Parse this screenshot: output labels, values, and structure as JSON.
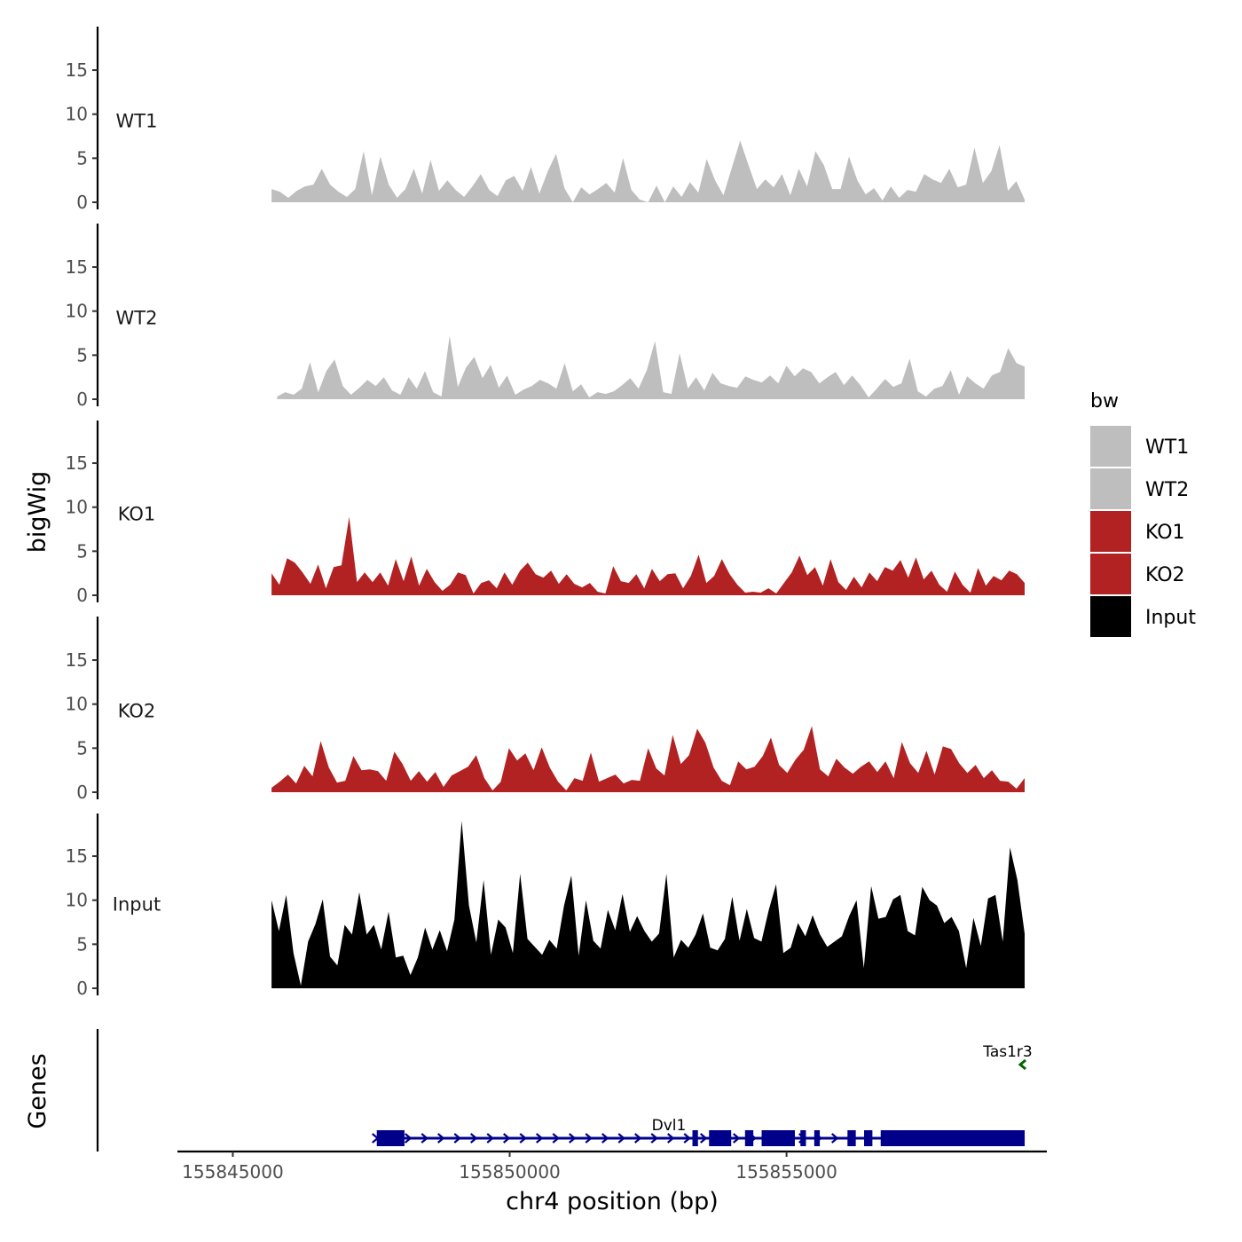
{
  "chart_data": {
    "type": "area",
    "chromosome": "chr4",
    "x_range": [
      155845000,
      155859300
    ],
    "x_ticks": [
      155845000,
      155850000,
      155855000
    ],
    "x_tick_labels": [
      "155845000",
      "155850000",
      "155855000"
    ],
    "xlabel": "chr4 position (bp)",
    "ylabel": "bigWig",
    "ylim": [
      0,
      20
    ],
    "y_ticks": [
      0,
      5,
      10,
      15
    ],
    "y_tick_labels": [
      "0",
      "5",
      "10",
      "15"
    ],
    "tracks_title": "Genes",
    "colors": {
      "WT1": "#bebebe",
      "WT2": "#bebebe",
      "KO1": "#b22222",
      "KO2": "#b22222",
      "Input": "#000000",
      "Dvl1": "#00008b",
      "Tas1r3": "#006400"
    },
    "legend": {
      "title": "bw",
      "placement": "right",
      "entries": [
        "WT1",
        "WT2",
        "KO1",
        "KO2",
        "Input"
      ]
    },
    "series": [
      {
        "name": "WT1",
        "x_start": 155845700,
        "x_end": 155859300,
        "values": [
          1.5,
          1.2,
          0.5,
          1.3,
          1.8,
          2,
          3.8,
          2,
          1.2,
          0.6,
          1.5,
          5.8,
          0.8,
          5.2,
          2,
          0.5,
          1.5,
          3.8,
          1,
          4.8,
          1.3,
          2.5,
          1.4,
          0.6,
          1.8,
          3.2,
          1.4,
          0.7,
          2.5,
          3,
          1.3,
          4,
          1,
          3.5,
          5.5,
          1.6,
          0,
          1.7,
          0.9,
          1.5,
          2.2,
          1.1,
          5,
          1.4,
          0.3,
          0,
          1.9,
          0,
          1.8,
          0.6,
          2.3,
          1.1,
          4.9,
          2.5,
          0.8,
          3.9,
          7,
          4.2,
          1.5,
          2.6,
          1.7,
          3.2,
          0.8,
          3.8,
          1.8,
          5.8,
          4.2,
          1.5,
          1.5,
          5.2,
          2.5,
          0.9,
          1.6,
          0.2,
          1.8,
          0.5,
          1.4,
          1.2,
          3.2,
          2.6,
          2.2,
          3.8,
          1.7,
          2,
          6.2,
          2.2,
          3.5,
          6.5,
          1.3,
          2.4,
          0.3
        ]
      },
      {
        "name": "WT2",
        "x_start": 155845800,
        "x_end": 155859300,
        "values": [
          0.3,
          0.8,
          0.5,
          1.2,
          4.2,
          0.8,
          3.2,
          4.5,
          1.5,
          0.5,
          1.3,
          2.2,
          1.5,
          2.5,
          1,
          0.5,
          2.5,
          1.2,
          3.2,
          0.8,
          0.3,
          7.2,
          1.4,
          3.6,
          4.8,
          2.4,
          3.9,
          1.3,
          2.7,
          0.5,
          1.1,
          1.5,
          2.2,
          1.8,
          1.2,
          4.1,
          0.9,
          1.7,
          0.2,
          0.8,
          0.6,
          0.9,
          1.6,
          2.4,
          1.2,
          3.3,
          6.6,
          0.8,
          0.6,
          5.2,
          1.2,
          2.5,
          1,
          3,
          1.8,
          1.5,
          1.3,
          2.6,
          2.2,
          1.9,
          2.7,
          1.8,
          3.8,
          2.6,
          3.5,
          3.1,
          1.8,
          2.5,
          3.1,
          1.6,
          2.7,
          1.6,
          0.2,
          1.2,
          2.3,
          1.4,
          1.8,
          4.6,
          0.9,
          0.3,
          1.2,
          1.5,
          3.3,
          0.5,
          2.6,
          1.8,
          1.2,
          2.7,
          3.1,
          5.8,
          4.1,
          3.7
        ]
      },
      {
        "name": "KO1",
        "x_start": 155845700,
        "x_end": 155859300,
        "values": [
          2.5,
          1.2,
          4.2,
          3.7,
          2.6,
          1.3,
          3.5,
          0.8,
          3.2,
          3.4,
          8.9,
          1.5,
          2.6,
          1.5,
          2.6,
          1.1,
          4.1,
          1.6,
          4.4,
          1.1,
          3,
          1.5,
          0.5,
          1.2,
          2.6,
          2.3,
          0.2,
          1.4,
          1.7,
          0.8,
          2.6,
          1.2,
          2.8,
          3.7,
          2.4,
          2,
          2.8,
          1.3,
          2.4,
          1.3,
          0.9,
          1.4,
          0.4,
          0.2,
          3.3,
          1.6,
          1.4,
          2.4,
          0.8,
          3,
          1.6,
          2.4,
          2.5,
          0.8,
          2.2,
          4.6,
          1.4,
          2.2,
          4.1,
          2.4,
          1.2,
          0.3,
          0.4,
          0.3,
          0.8,
          0.2,
          1.4,
          2.6,
          4.5,
          2.3,
          3.2,
          1.1,
          4.1,
          1.5,
          0.6,
          2.1,
          0.9,
          2.6,
          1.6,
          3.2,
          2.8,
          4,
          2,
          4.3,
          1.8,
          2.8,
          1.2,
          0.4,
          2.7,
          1.2,
          0.3,
          3.1,
          1.1,
          2.2,
          1.7,
          2.8,
          2.4,
          1.4
        ]
      },
      {
        "name": "KO2",
        "x_start": 155845700,
        "x_end": 155859300,
        "values": [
          0.5,
          1.2,
          2,
          1,
          3,
          1.8,
          5.8,
          2.8,
          1.1,
          1.3,
          4.1,
          2.5,
          2.6,
          2.4,
          1.3,
          4.6,
          3.2,
          1.3,
          2.4,
          1.2,
          2.3,
          0.6,
          1.9,
          2.4,
          2.9,
          4.2,
          1.6,
          0.2,
          1.2,
          5,
          3.6,
          4.4,
          2.5,
          5.1,
          2.8,
          1.2,
          0.2,
          1.6,
          1.3,
          4.5,
          1.2,
          1.6,
          2,
          1,
          1.4,
          1.3,
          5,
          2.7,
          1.9,
          6.5,
          3.2,
          4.2,
          7.2,
          5.6,
          2.8,
          1.3,
          0.8,
          3.5,
          2.6,
          2.9,
          4.1,
          6.2,
          3.1,
          2.2,
          3.7,
          4.8,
          7.5,
          2.6,
          1.8,
          3.8,
          2.8,
          2.1,
          2.9,
          3.5,
          2.3,
          3.5,
          1.6,
          5.7,
          3.3,
          2.2,
          4.7,
          2,
          5.2,
          4.9,
          3.3,
          2.2,
          3.1,
          1.6,
          2.5,
          1.3,
          1.2,
          0.4,
          1.6
        ]
      },
      {
        "name": "Input",
        "x_start": 155845700,
        "x_end": 155859300,
        "values": [
          10,
          6.5,
          10.6,
          4,
          0.3,
          5.3,
          7.3,
          10.1,
          3.6,
          2.6,
          7.2,
          6.1,
          10.9,
          6.1,
          7.2,
          4.4,
          8.7,
          3.5,
          3.7,
          1.5,
          3.5,
          6.9,
          4.4,
          6.6,
          4.2,
          7.8,
          19,
          9.4,
          5.2,
          12.3,
          3.8,
          7.8,
          6.9,
          4,
          13,
          5.6,
          4.7,
          3.8,
          5.5,
          4.5,
          9.4,
          12.8,
          3.7,
          10,
          5.4,
          4.5,
          8.9,
          6.6,
          10.7,
          6.4,
          8.2,
          6.5,
          5.3,
          6.2,
          13,
          3.5,
          5.5,
          4.6,
          6.1,
          8.5,
          4.6,
          4.3,
          5.6,
          10.4,
          5.4,
          9,
          5.7,
          5.3,
          8.9,
          11.8,
          4,
          4.6,
          7.4,
          5.9,
          8.3,
          6.1,
          4.7,
          5.3,
          5.9,
          8.2,
          10,
          2.3,
          11.6,
          7.9,
          8.1,
          10.1,
          10.6,
          6.5,
          6,
          11.5,
          10,
          9.4,
          7.4,
          8.1,
          6.5,
          2.3,
          8,
          4.8,
          10.2,
          10.6,
          5.3,
          16,
          12.3,
          6.2
        ]
      }
    ],
    "genes": [
      {
        "name": "Dvl1",
        "strand": "+",
        "start": 155847600,
        "end": 155859300,
        "exons": [
          [
            155847600,
            155848100
          ],
          [
            155853300,
            155853400
          ],
          [
            155853600,
            155854000
          ],
          [
            155854250,
            155854400
          ],
          [
            155854550,
            155855150
          ],
          [
            155855250,
            155855350
          ],
          [
            155855500,
            155855600
          ],
          [
            155856100,
            155856250
          ],
          [
            155856400,
            155856550
          ],
          [
            155856700,
            155859300
          ]
        ]
      },
      {
        "name": "Tas1r3",
        "strand": "-",
        "start": 155859250,
        "end": 155859300,
        "exons": []
      }
    ]
  }
}
